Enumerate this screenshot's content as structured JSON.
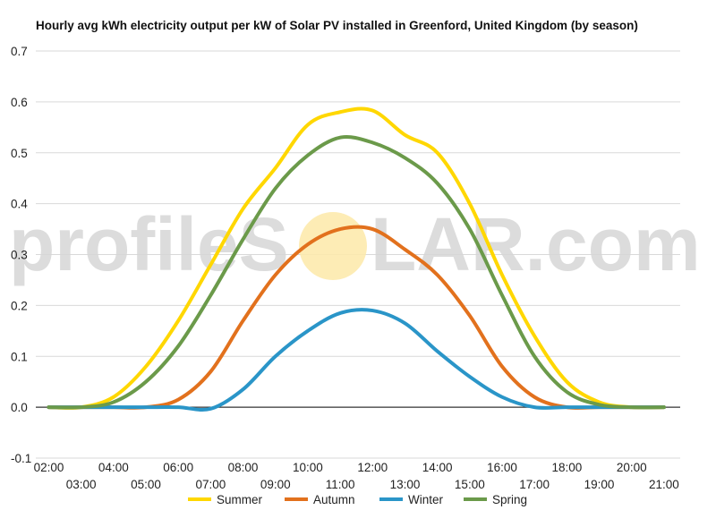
{
  "watermark": {
    "text_left": "profileS",
    "text_right": "LAR.com",
    "sun_color": "#fde9a8"
  },
  "chart_data": {
    "type": "line",
    "title": "Hourly avg kWh electricity output per kW of Solar PV installed in Greenford, United Kingdom (by season)",
    "xlabel": "",
    "ylabel": "",
    "x": [
      2,
      3,
      4,
      5,
      6,
      7,
      8,
      9,
      10,
      11,
      12,
      13,
      14,
      15,
      16,
      17,
      18,
      19,
      20,
      21
    ],
    "x_tick_labels": [
      "02:00",
      "03:00",
      "04:00",
      "05:00",
      "06:00",
      "07:00",
      "08:00",
      "09:00",
      "10:00",
      "11:00",
      "12:00",
      "13:00",
      "14:00",
      "15:00",
      "16:00",
      "17:00",
      "18:00",
      "19:00",
      "20:00",
      "21:00"
    ],
    "xlim": [
      1.6,
      21.5
    ],
    "ylim": [
      -0.1,
      0.7
    ],
    "y_ticks": [
      -0.1,
      0.0,
      0.1,
      0.2,
      0.3,
      0.4,
      0.5,
      0.6,
      0.7
    ],
    "y_tick_labels": [
      "-0.1",
      "0.0",
      "0.1",
      "0.2",
      "0.3",
      "0.4",
      "0.5",
      "0.6",
      "0.7"
    ],
    "grid": "horizontal",
    "legend_position": "bottom",
    "series": [
      {
        "name": "Summer",
        "color": "#ffd700",
        "values": [
          0.0,
          0.0,
          0.02,
          0.08,
          0.17,
          0.28,
          0.39,
          0.47,
          0.555,
          0.58,
          0.583,
          0.535,
          0.5,
          0.4,
          0.26,
          0.14,
          0.05,
          0.01,
          0.0,
          0.0
        ]
      },
      {
        "name": "Autumn",
        "color": "#e2711d",
        "values": [
          0.0,
          0.0,
          0.0,
          0.0,
          0.015,
          0.07,
          0.17,
          0.26,
          0.32,
          0.35,
          0.35,
          0.31,
          0.26,
          0.18,
          0.08,
          0.02,
          0.0,
          0.0,
          0.0,
          0.0
        ]
      },
      {
        "name": "Winter",
        "color": "#2a95c8",
        "values": [
          0.0,
          0.0,
          0.0,
          0.0,
          0.0,
          -0.003,
          0.035,
          0.1,
          0.15,
          0.185,
          0.19,
          0.165,
          0.11,
          0.06,
          0.02,
          0.0,
          0.0,
          0.0,
          0.0,
          0.0
        ]
      },
      {
        "name": "Spring",
        "color": "#6b9a4a",
        "values": [
          0.0,
          0.0,
          0.01,
          0.05,
          0.12,
          0.22,
          0.33,
          0.43,
          0.495,
          0.53,
          0.52,
          0.49,
          0.44,
          0.35,
          0.22,
          0.1,
          0.03,
          0.005,
          0.0,
          0.0
        ]
      }
    ]
  }
}
